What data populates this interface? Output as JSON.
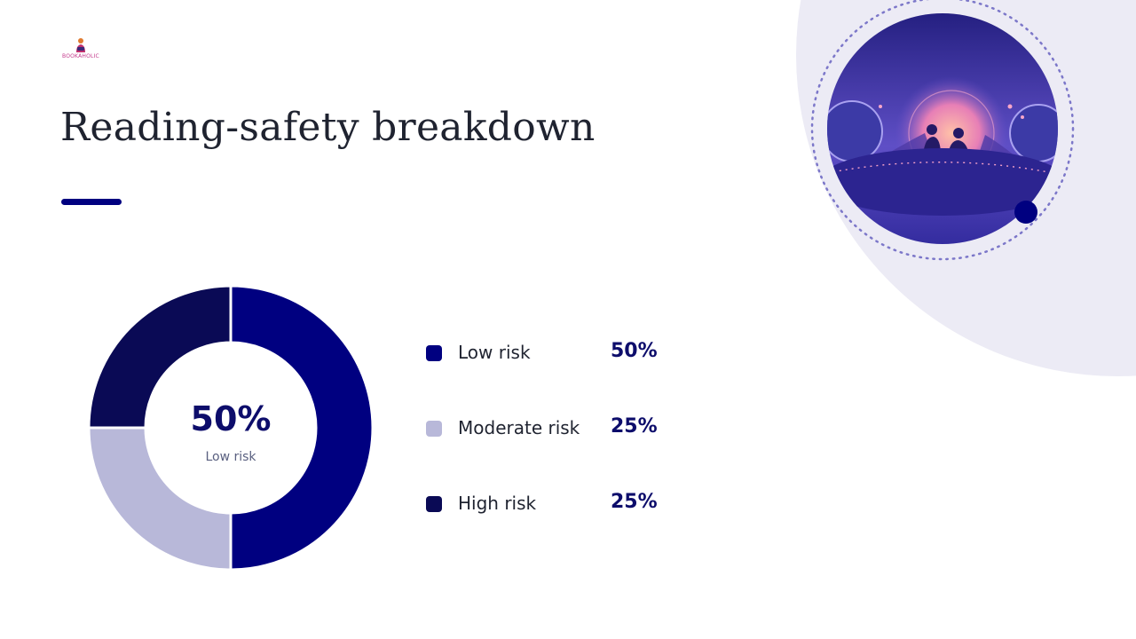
{
  "slide": {
    "title": "Reading-safety breakdown",
    "logo": {
      "text": "BOOKAHOLIC",
      "icon": "reader-figure-icon"
    },
    "illustration": {
      "icon": "people-under-glowing-moon-icon"
    }
  },
  "chart_data": {
    "type": "pie",
    "style": "donut",
    "categories": [
      "Low risk",
      "Moderate risk",
      "High risk"
    ],
    "values": [
      50,
      25,
      25
    ],
    "value_labels": [
      "50%",
      "25%",
      "25%"
    ],
    "colors": [
      "#000080",
      "#b8b8d9",
      "#0a0a55"
    ],
    "center": {
      "value": "50%",
      "label": "Low risk"
    },
    "legend_position": "right"
  },
  "theme": {
    "accent": "#000080",
    "background_arc": "#ecebf5",
    "title_color": "#1f2330"
  }
}
